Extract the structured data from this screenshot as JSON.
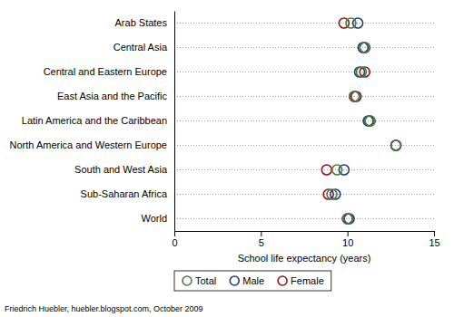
{
  "chart_data": {
    "type": "dot",
    "orientation": "horizontal",
    "categories": [
      "Arab States",
      "Central Asia",
      "Central and Eastern Europe",
      "East Asia and the Pacific",
      "Latin America and the Caribbean",
      "North America and Western Europe",
      "South and West Asia",
      "Sub-Saharan Africa",
      "World"
    ],
    "series": [
      {
        "name": "Total",
        "color": "#4d7c3e",
        "marker": "circle",
        "values": [
          10.2,
          11.0,
          10.8,
          10.4,
          11.3,
          12.8,
          9.4,
          9.1,
          10.0
        ]
      },
      {
        "name": "Male",
        "color": "#1e3f7a",
        "marker": "circle",
        "values": [
          10.6,
          10.9,
          10.7,
          10.4,
          11.2,
          12.8,
          9.8,
          9.3,
          10.1
        ]
      },
      {
        "name": "Female",
        "color": "#8b1a1a",
        "marker": "circle",
        "values": [
          9.8,
          11.0,
          11.0,
          10.5,
          11.3,
          12.8,
          8.8,
          8.9,
          10.0
        ]
      }
    ],
    "xlim": [
      0,
      15
    ],
    "xticks": [
      0,
      5,
      10,
      15
    ],
    "xlabel": "School life expectancy (years)",
    "grid": true,
    "legend": "bottom",
    "annotations": [
      "Friedrich Huebler, huebler.blogspot.com, October 2009"
    ]
  }
}
